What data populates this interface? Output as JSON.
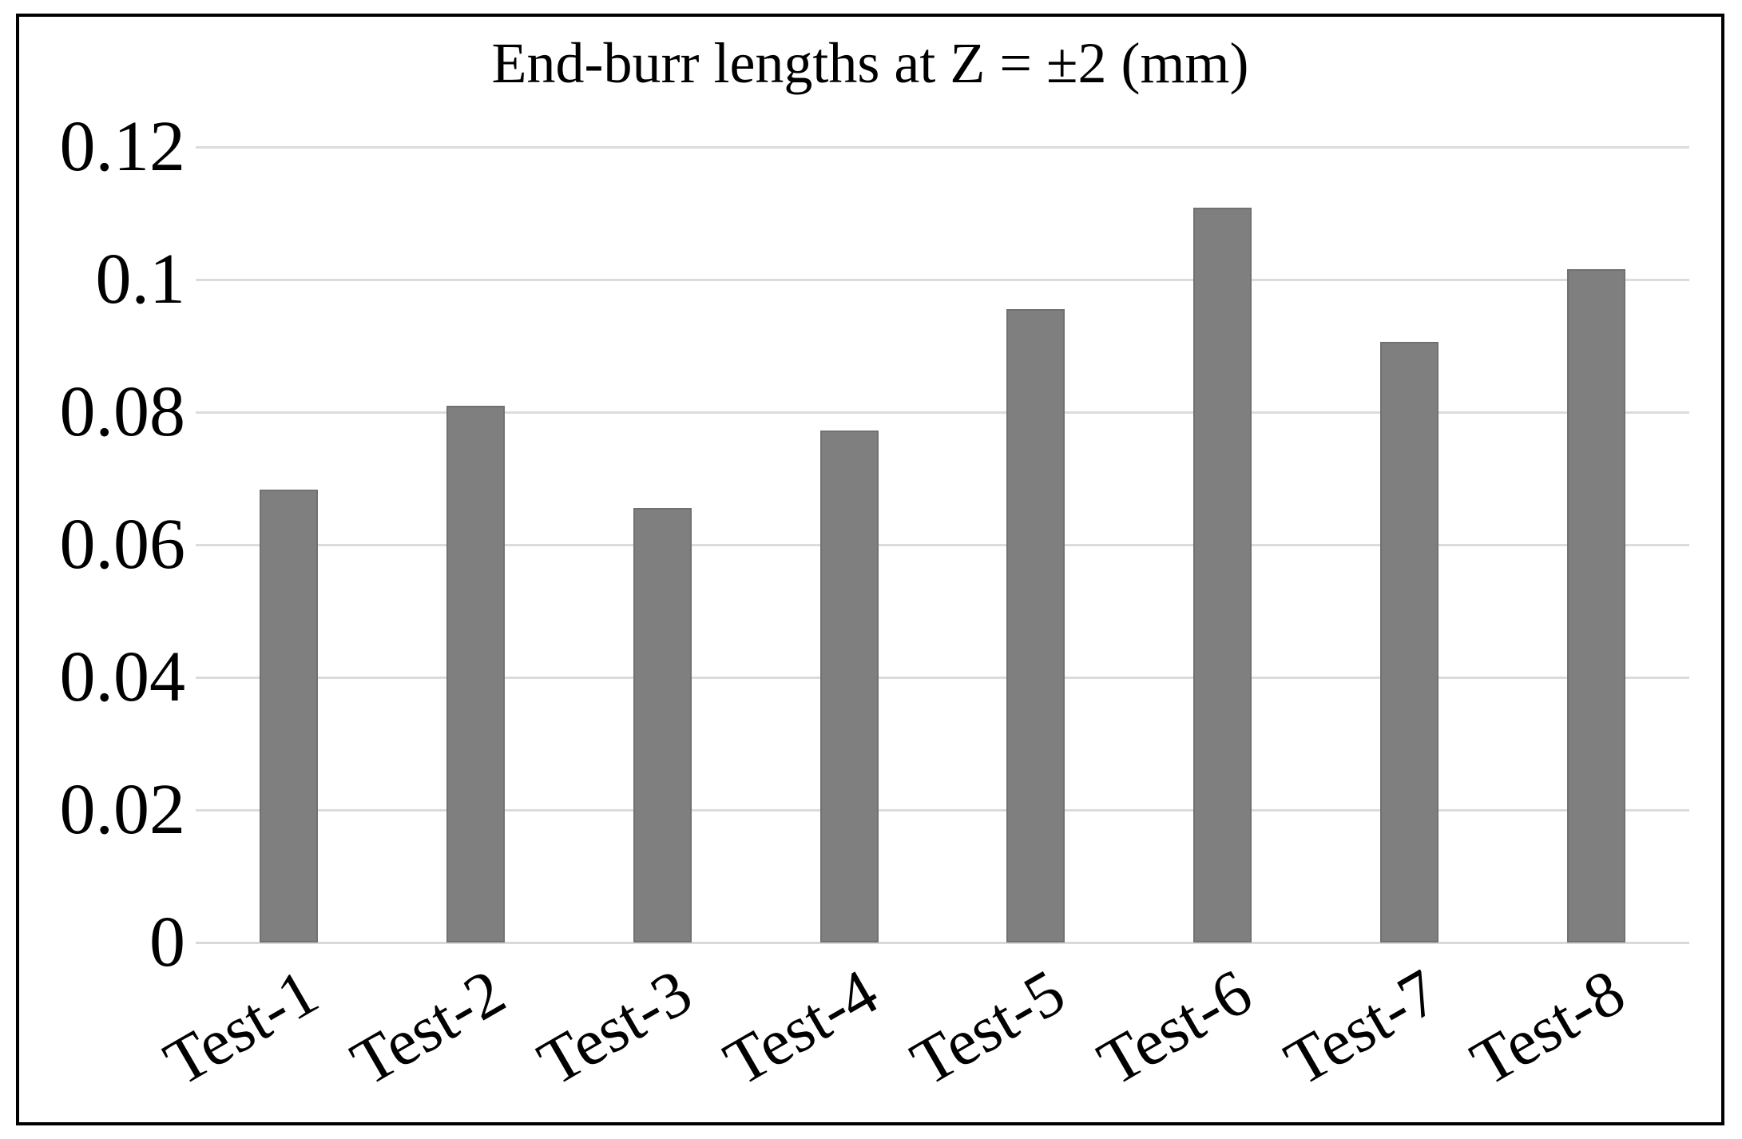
{
  "chart_data": {
    "type": "bar",
    "title": "End-burr lengths at Z = ±2 (mm)",
    "categories": [
      "Test-1",
      "Test-2",
      "Test-3",
      "Test-4",
      "Test-5",
      "Test-6",
      "Test-7",
      "Test-8"
    ],
    "values": [
      0.0683,
      0.081,
      0.0656,
      0.0772,
      0.0956,
      0.1109,
      0.0906,
      0.1016
    ],
    "xlabel": "",
    "ylabel": "",
    "ylim": [
      0,
      0.12
    ],
    "ytick_step": 0.02,
    "yticks": [
      0,
      0.02,
      0.04,
      0.06,
      0.08,
      0.1,
      0.12
    ],
    "ytick_labels": [
      "0",
      "0.02",
      "0.04",
      "0.06",
      "0.08",
      "0.1",
      "0.12"
    ],
    "grid": "horizontal",
    "legend": "none",
    "x_label_rotation_deg": -30,
    "colors": {
      "bar": "#7f7f7f",
      "bar_edge": "#717171",
      "gridline": "#dcdcdc",
      "axis_line": "#d9d9d9",
      "text": "#000000",
      "frame_border": "#000000",
      "background": "#ffffff"
    }
  }
}
